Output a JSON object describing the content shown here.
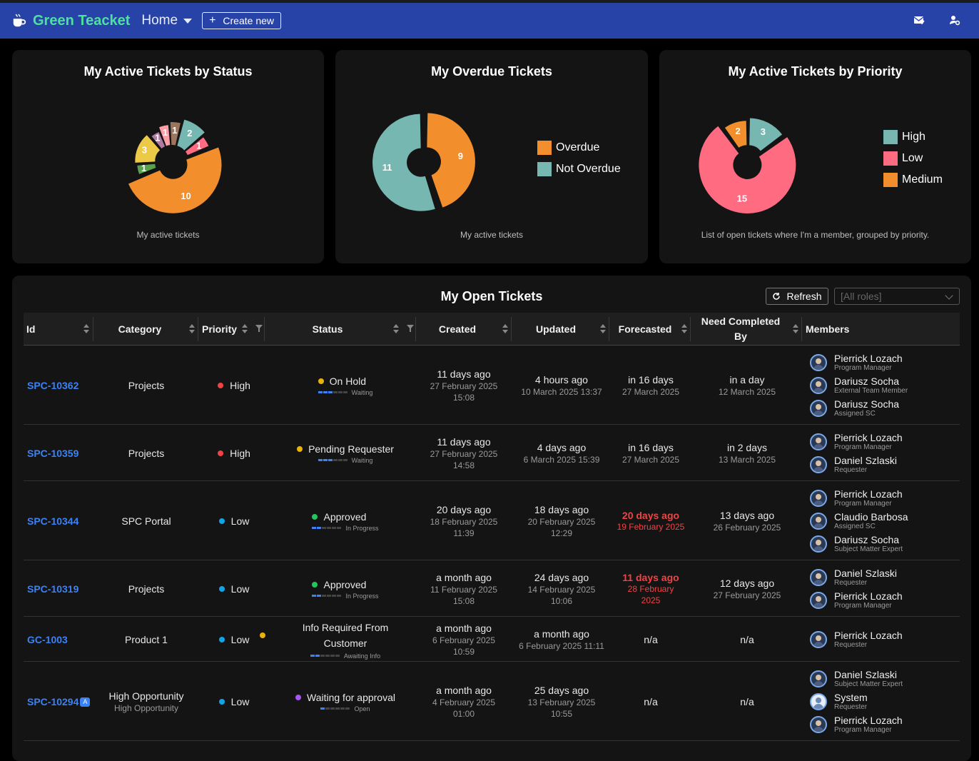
{
  "header": {
    "brand": "Green Teacket",
    "home": "Home",
    "create_new": "Create new",
    "icons": [
      "coffee-cup-icon",
      "mail-check-icon",
      "user-settings-icon"
    ],
    "bg_color": "#2743a8",
    "brand_color": "#4ee0a0"
  },
  "cards": {
    "status": {
      "title": "My Active Tickets by Status",
      "subtitle": "My active tickets"
    },
    "overdue": {
      "title": "My Overdue Tickets",
      "subtitle": "My active tickets"
    },
    "priority": {
      "title": "My Active Tickets by Priority",
      "subtitle": "List of open tickets where I'm a member, grouped by priority."
    }
  },
  "chart_data": [
    {
      "type": "pie",
      "title": "My Active Tickets by Status",
      "values": [
        10,
        1,
        3,
        1,
        1,
        1,
        2,
        1
      ],
      "colors": [
        "#f28e2b",
        "#59a14f",
        "#edc948",
        "#b07aa1",
        "#ff9da7",
        "#9c755f",
        "#76b7b2",
        "#ff6b81"
      ],
      "labels": [
        "10",
        "1",
        "3",
        "1",
        "1",
        "1",
        "2",
        "1"
      ],
      "donut": true
    },
    {
      "type": "pie",
      "title": "My Overdue Tickets",
      "series": [
        "Overdue",
        "Not Overdue"
      ],
      "values": [
        9,
        11
      ],
      "colors": [
        "#f28e2b",
        "#76b7b2"
      ],
      "legend": "right",
      "donut": true
    },
    {
      "type": "pie",
      "title": "My Active Tickets by Priority",
      "series": [
        "High",
        "Low",
        "Medium"
      ],
      "values": [
        3,
        15,
        2
      ],
      "colors": [
        "#76b7b2",
        "#ff6b81",
        "#f28e2b"
      ],
      "legend": "right",
      "donut": true
    }
  ],
  "table": {
    "title": "My Open Tickets",
    "refresh": "Refresh",
    "roles_placeholder": "[All roles]",
    "columns": {
      "id": "Id",
      "category": "Category",
      "priority": "Priority",
      "status": "Status",
      "created": "Created",
      "updated": "Updated",
      "forecasted": "Forecasted",
      "need": "Need Completed By",
      "members": "Members"
    },
    "rows": [
      {
        "id": "SPC-10362",
        "category": "Projects",
        "category_sub": "",
        "priority": "High",
        "priority_color": "#ef4444",
        "status": "On Hold",
        "status_color": "#eab308",
        "progress_label": "Waiting",
        "progress": 3,
        "created": "11 days ago",
        "created_sub": "27 February 2025 15:08",
        "updated": "4 hours ago",
        "updated_sub": "10 March 2025 13:37",
        "forecasted": "in 16 days",
        "forecasted_sub": "27 March 2025",
        "forecasted_overdue": false,
        "need": "in a day",
        "need_sub": "12 March 2025",
        "members": [
          {
            "name": "Pierrick Lozach",
            "role": "Program Manager"
          },
          {
            "name": "Dariusz Socha",
            "role": "External Team Member"
          },
          {
            "name": "Dariusz Socha",
            "role": "Assigned SC"
          }
        ]
      },
      {
        "id": "SPC-10359",
        "category": "Projects",
        "category_sub": "",
        "priority": "High",
        "priority_color": "#ef4444",
        "status": "Pending Requester",
        "status_color": "#eab308",
        "progress_label": "Waiting",
        "progress": 3,
        "created": "11 days ago",
        "created_sub": "27 February 2025 14:58",
        "updated": "4 days ago",
        "updated_sub": "6 March 2025 15:39",
        "forecasted": "in 16 days",
        "forecasted_sub": "27 March 2025",
        "forecasted_overdue": false,
        "need": "in 2 days",
        "need_sub": "13 March 2025",
        "members": [
          {
            "name": "Pierrick Lozach",
            "role": "Program Manager"
          },
          {
            "name": "Daniel Szlaski",
            "role": "Requester"
          }
        ]
      },
      {
        "id": "SPC-10344",
        "category": "SPC Portal",
        "category_sub": "",
        "priority": "Low",
        "priority_color": "#0ea5e9",
        "status": "Approved",
        "status_color": "#22c55e",
        "progress_label": "In Progress",
        "progress": 2,
        "created": "20 days ago",
        "created_sub": "18 February 2025 11:39",
        "updated": "18 days ago",
        "updated_sub": "20 February 2025 12:29",
        "forecasted": "20 days ago",
        "forecasted_sub": "19 February 2025",
        "forecasted_overdue": true,
        "need": "13 days ago",
        "need_sub": "26 February 2025",
        "members": [
          {
            "name": "Pierrick Lozach",
            "role": "Program Manager"
          },
          {
            "name": "Claudio Barbosa",
            "role": "Assigned SC"
          },
          {
            "name": "Dariusz Socha",
            "role": "Subject Matter Expert"
          }
        ]
      },
      {
        "id": "SPC-10319",
        "category": "Projects",
        "category_sub": "",
        "priority": "Low",
        "priority_color": "#0ea5e9",
        "status": "Approved",
        "status_color": "#22c55e",
        "progress_label": "In Progress",
        "progress": 2,
        "created": "a month ago",
        "created_sub": "11 February 2025 15:08",
        "updated": "24 days ago",
        "updated_sub": "14 February 2025 10:06",
        "forecasted": "11 days ago",
        "forecasted_sub": "28 February 2025",
        "forecasted_overdue": true,
        "need": "12 days ago",
        "need_sub": "27 February 2025",
        "members": [
          {
            "name": "Daniel Szlaski",
            "role": "Requester"
          },
          {
            "name": "Pierrick Lozach",
            "role": "Program Manager"
          }
        ]
      },
      {
        "id": "GC-1003",
        "category": "Product 1",
        "category_sub": "",
        "priority": "Low",
        "priority_color": "#0ea5e9",
        "status": "Info Required From Customer",
        "status_color": "#eab308",
        "progress_label": "Awaiting Info",
        "progress": 2,
        "created": "a month ago",
        "created_sub": "6 February 2025 10:59",
        "updated": "a month ago",
        "updated_sub": "6 February 2025 11:11",
        "forecasted": "n/a",
        "forecasted_sub": "",
        "forecasted_overdue": false,
        "need": "n/a",
        "need_sub": "",
        "members": [
          {
            "name": "Pierrick Lozach",
            "role": "Requester"
          }
        ]
      },
      {
        "id": "SPC-10294",
        "id_badge": "A",
        "category": "High Opportunity",
        "category_sub": "High Opportunity",
        "priority": "Low",
        "priority_color": "#0ea5e9",
        "status": "Waiting for approval",
        "status_color": "#a855f7",
        "progress_label": "Open",
        "progress": 1,
        "created": "a month ago",
        "created_sub": "4 February 2025 01:00",
        "updated": "25 days ago",
        "updated_sub": "13 February 2025 10:55",
        "forecasted": "n/a",
        "forecasted_sub": "",
        "forecasted_overdue": false,
        "need": "n/a",
        "need_sub": "",
        "members": [
          {
            "name": "Daniel Szlaski",
            "role": "Subject Matter Expert"
          },
          {
            "name": "System",
            "role": "Requester"
          },
          {
            "name": "Pierrick Lozach",
            "role": "Program Manager"
          }
        ]
      }
    ]
  }
}
